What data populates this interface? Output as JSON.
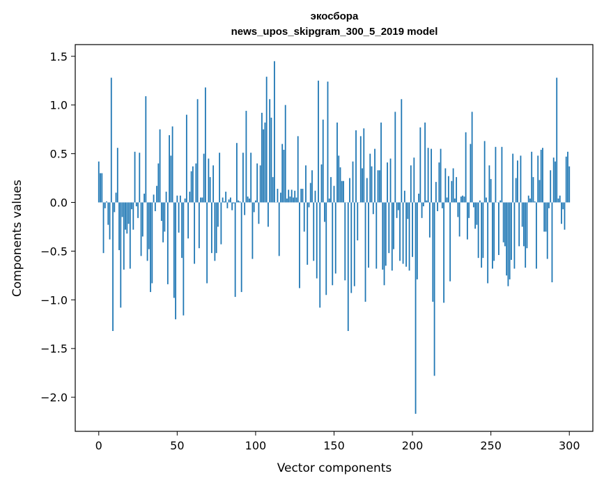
{
  "chart_data": {
    "type": "bar",
    "title": "экосбора",
    "subtitle": "news_upos_skipgram_300_5_2019 model",
    "xlabel": "Vector components",
    "ylabel": "Components values",
    "xlim": [
      -15,
      315
    ],
    "ylim": [
      -2.35,
      1.62
    ],
    "xticks": [
      0,
      50,
      100,
      150,
      200,
      250,
      300
    ],
    "xtick_labels": [
      "0",
      "50",
      "100",
      "150",
      "200",
      "250",
      "300"
    ],
    "yticks": [
      -2.0,
      -1.5,
      -1.0,
      -0.5,
      0.0,
      0.5,
      1.0,
      1.5
    ],
    "ytick_labels": [
      "−2.0",
      "−1.5",
      "−1.0",
      "−0.5",
      "0.0",
      "0.5",
      "1.0",
      "1.5"
    ],
    "grid": false,
    "bar_color": "#1f77b4",
    "values": [
      0.42,
      0.3,
      0.3,
      -0.52,
      -0.06,
      0.01,
      -0.23,
      -0.38,
      1.28,
      -1.32,
      -0.1,
      0.1,
      0.56,
      -0.49,
      -1.08,
      -0.15,
      -0.69,
      -0.28,
      -0.32,
      -0.22,
      -0.68,
      -0.07,
      -0.28,
      0.52,
      -0.04,
      -0.16,
      0.51,
      -0.55,
      -0.35,
      0.09,
      1.09,
      -0.6,
      -0.48,
      -0.92,
      -0.83,
      0.08,
      -0.09,
      0.17,
      0.4,
      0.75,
      -0.19,
      -0.41,
      -0.3,
      0.11,
      -0.84,
      0.69,
      0.48,
      0.78,
      -0.98,
      -1.2,
      0.07,
      -0.31,
      0.07,
      -0.57,
      -1.16,
      0.04,
      0.9,
      -0.37,
      0.11,
      0.32,
      0.37,
      -0.63,
      0.4,
      1.06,
      -0.47,
      0.05,
      0.05,
      0.5,
      1.18,
      -0.83,
      0.45,
      0.26,
      -0.52,
      0.38,
      -0.6,
      -0.52,
      -0.25,
      0.51,
      -0.43,
      0.05,
      0.01,
      0.11,
      -0.06,
      0.03,
      0.05,
      -0.08,
      -0.01,
      -0.97,
      0.61,
      0.02,
      0.01,
      -0.92,
      0.51,
      -0.13,
      0.94,
      0.06,
      0.04,
      0.51,
      -0.58,
      -0.1,
      0.02,
      0.4,
      -0.22,
      0.38,
      0.92,
      0.75,
      0.82,
      1.29,
      -0.25,
      1.06,
      0.87,
      0.26,
      1.45,
      0.0,
      0.14,
      -0.55,
      0.1,
      0.6,
      0.54,
      1.0,
      0.04,
      0.13,
      0.06,
      0.13,
      0.05,
      0.12,
      0.05,
      0.68,
      -0.88,
      0.14,
      0.14,
      -0.3,
      0.38,
      -0.64,
      -0.05,
      0.2,
      0.33,
      -0.6,
      0.12,
      -0.78,
      1.25,
      -1.08,
      0.39,
      0.85,
      -0.2,
      -0.95,
      1.24,
      0.04,
      0.26,
      -0.85,
      0.17,
      -0.73,
      0.82,
      0.48,
      0.36,
      0.22,
      0.22,
      -0.8,
      0.0,
      -1.32,
      0.25,
      -0.93,
      0.42,
      -0.86,
      0.74,
      -0.39,
      0.0,
      0.68,
      0.35,
      0.76,
      -1.02,
      0.25,
      -0.67,
      0.5,
      0.37,
      -0.12,
      0.55,
      -0.68,
      0.33,
      0.33,
      0.82,
      -0.69,
      -0.85,
      -0.65,
      0.41,
      -0.52,
      0.45,
      -0.7,
      -0.48,
      0.93,
      -0.16,
      -0.08,
      -0.6,
      1.06,
      -0.63,
      0.12,
      -0.66,
      -0.17,
      -0.7,
      0.38,
      -0.56,
      0.46,
      -2.17,
      -0.79,
      0.09,
      0.77,
      -0.16,
      -0.04,
      0.82,
      0.02,
      0.56,
      -0.36,
      0.55,
      -1.02,
      -1.78,
      0.21,
      -0.09,
      0.41,
      0.55,
      -0.06,
      -1.03,
      0.35,
      0.05,
      0.27,
      -0.81,
      0.22,
      0.35,
      0.04,
      0.26,
      -0.15,
      -0.35,
      0.06,
      0.07,
      0.06,
      0.72,
      -0.38,
      -0.16,
      0.6,
      0.93,
      -0.05,
      -0.27,
      -0.23,
      -0.57,
      0.02,
      -0.67,
      -0.57,
      0.63,
      0.05,
      -0.83,
      0.38,
      0.24,
      -0.68,
      -0.6,
      0.57,
      0.0,
      -0.54,
      0.02,
      0.57,
      -0.41,
      -0.45,
      -0.75,
      -0.86,
      -0.79,
      -0.59,
      0.5,
      -0.68,
      0.25,
      0.43,
      -0.45,
      0.48,
      -0.25,
      -0.45,
      -0.67,
      -0.47,
      0.07,
      0.04,
      0.52,
      0.26,
      0.01,
      -0.68,
      0.48,
      0.23,
      0.54,
      0.56,
      -0.3,
      -0.3,
      -0.58,
      -0.06,
      0.33,
      -0.82,
      0.46,
      0.42,
      1.28,
      0.04,
      0.07,
      -0.22,
      -0.07,
      -0.28,
      0.47,
      0.52,
      0.37
    ]
  }
}
